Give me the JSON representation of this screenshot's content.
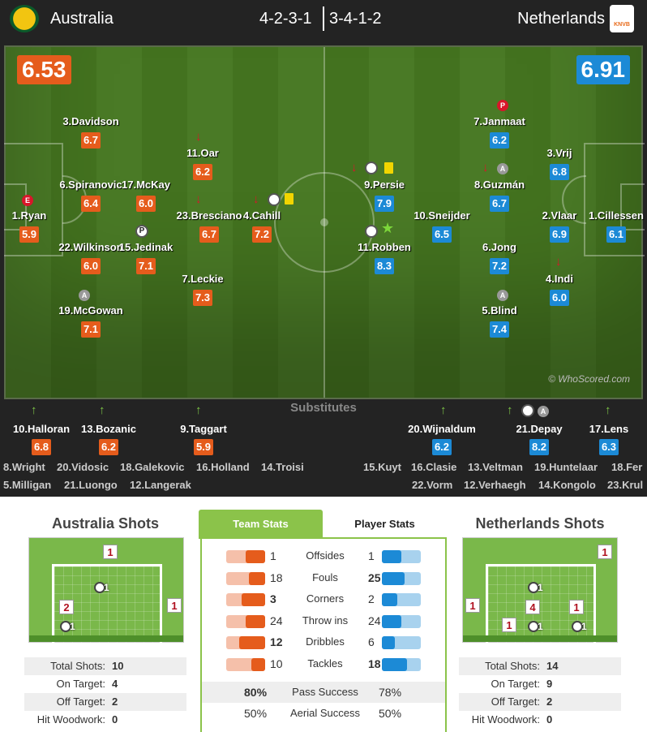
{
  "header": {
    "home_team": "Australia",
    "away_team": "Netherlands",
    "home_formation": "4-2-3-1",
    "away_formation": "3-4-1-2",
    "home_rating": "6.53",
    "away_rating": "6.91",
    "home_badge_icon": "australia-crest-icon",
    "away_badge_icon": "knvb-lion-icon",
    "knvb_text": "KNVB"
  },
  "colors": {
    "home": "#e55c1c",
    "away": "#1c8ad6",
    "pitch": "#4a7a26",
    "accent": "#8bc34a"
  },
  "pitch": {
    "watermark": "© WhoScored.com"
  },
  "home_players": [
    {
      "name": "1.Ryan",
      "rating": "5.9",
      "icons": [
        "red-card-icon"
      ]
    },
    {
      "name": "3.Davidson",
      "rating": "6.7",
      "icons": []
    },
    {
      "name": "6.Spiranovic",
      "rating": "6.4",
      "icons": []
    },
    {
      "name": "22.Wilkinson",
      "rating": "6.0",
      "icons": []
    },
    {
      "name": "19.McGowan",
      "rating": "7.1",
      "icons": [
        "assist-icon"
      ]
    },
    {
      "name": "17.McKay",
      "rating": "6.0",
      "icons": []
    },
    {
      "name": "15.Jedinak",
      "rating": "7.1",
      "icons": [
        "penalty-goal-icon"
      ]
    },
    {
      "name": "11.Oar",
      "rating": "6.2",
      "icons": [
        "sub-off-icon"
      ]
    },
    {
      "name": "23.Bresciano",
      "rating": "6.7",
      "icons": [
        "sub-off-icon"
      ]
    },
    {
      "name": "7.Leckie",
      "rating": "7.3",
      "icons": []
    },
    {
      "name": "4.Cahill",
      "rating": "7.2",
      "icons": [
        "sub-off-icon",
        "goal-icon",
        "yellow-card-icon"
      ]
    }
  ],
  "away_players": [
    {
      "name": "1.Cillessen",
      "rating": "6.1",
      "icons": []
    },
    {
      "name": "3.Vrij",
      "rating": "6.8",
      "icons": []
    },
    {
      "name": "2.Vlaar",
      "rating": "6.9",
      "icons": []
    },
    {
      "name": "4.Indi",
      "rating": "6.0",
      "icons": [
        "sub-off-icon"
      ]
    },
    {
      "name": "7.Janmaat",
      "rating": "6.2",
      "icons": [
        "penalty-conceded-icon"
      ]
    },
    {
      "name": "8.Guzmán",
      "rating": "6.7",
      "icons": [
        "sub-off-icon",
        "assist-icon"
      ]
    },
    {
      "name": "6.Jong",
      "rating": "7.2",
      "icons": []
    },
    {
      "name": "5.Blind",
      "rating": "7.4",
      "icons": [
        "assist-icon"
      ]
    },
    {
      "name": "10.Sneijder",
      "rating": "6.5",
      "icons": []
    },
    {
      "name": "9.Persie",
      "rating": "7.9",
      "icons": [
        "sub-off-icon",
        "goal-icon",
        "yellow-card-icon"
      ]
    },
    {
      "name": "11.Robben",
      "rating": "8.3",
      "icons": [
        "goal-icon",
        "man-of-the-match-icon"
      ]
    }
  ],
  "substitutes": {
    "title": "Substitutes",
    "home_used": [
      {
        "name": "10.Halloran",
        "rating": "6.8"
      },
      {
        "name": "13.Bozanic",
        "rating": "6.2"
      },
      {
        "name": "9.Taggart",
        "rating": "5.9"
      }
    ],
    "away_used": [
      {
        "name": "20.Wijnaldum",
        "rating": "6.2"
      },
      {
        "name": "21.Depay",
        "rating": "8.2"
      },
      {
        "name": "17.Lens",
        "rating": "6.3"
      }
    ],
    "home_bench": [
      "8.Wright",
      "20.Vidosic",
      "18.Galekovic",
      "16.Holland",
      "14.Troisi",
      "5.Milligan",
      "21.Luongo",
      "12.Langerak"
    ],
    "away_bench": [
      "15.Kuyt",
      "16.Clasie",
      "13.Veltman",
      "19.Huntelaar",
      "18.Fer",
      "22.Vorm",
      "12.Verhaegh",
      "14.Kongolo",
      "23.Krul"
    ]
  },
  "home_shots": {
    "title": "Australia Shots",
    "zones": {
      "top": "1",
      "left": "2",
      "right": "1",
      "goal_a": "1",
      "goal_b": "1"
    },
    "rows": [
      {
        "label": "Total Shots:",
        "value": "10"
      },
      {
        "label": "On Target:",
        "value": "4"
      },
      {
        "label": "Off Target:",
        "value": "2"
      },
      {
        "label": "Hit Woodwork:",
        "value": "0"
      }
    ]
  },
  "away_shots": {
    "title": "Netherlands Shots",
    "zones": {
      "top": "1",
      "left": "1",
      "center": "4",
      "right": "1",
      "low_left": "1",
      "goal_a": "1",
      "goal_b": "1",
      "goal_c": "1"
    },
    "rows": [
      {
        "label": "Total Shots:",
        "value": "14"
      },
      {
        "label": "On Target:",
        "value": "9"
      },
      {
        "label": "Off Target:",
        "value": "2"
      },
      {
        "label": "Hit Woodwork:",
        "value": "0"
      }
    ]
  },
  "stats": {
    "tab_team": "Team Stats",
    "tab_player": "Player Stats",
    "rows": [
      {
        "label": "Offsides",
        "home": "1",
        "away": "1",
        "home_share": 0.5,
        "away_share": 0.5,
        "bold": "none"
      },
      {
        "label": "Fouls",
        "home": "18",
        "away": "25",
        "home_share": 0.42,
        "away_share": 0.58,
        "bold": "away"
      },
      {
        "label": "Corners",
        "home": "3",
        "away": "2",
        "home_share": 0.6,
        "away_share": 0.4,
        "bold": "home"
      },
      {
        "label": "Throw ins",
        "home": "24",
        "away": "24",
        "home_share": 0.5,
        "away_share": 0.5,
        "bold": "none"
      },
      {
        "label": "Dribbles",
        "home": "12",
        "away": "6",
        "home_share": 0.67,
        "away_share": 0.33,
        "bold": "home"
      },
      {
        "label": "Tackles",
        "home": "10",
        "away": "18",
        "home_share": 0.36,
        "away_share": 0.64,
        "bold": "away"
      }
    ],
    "pass_label": "Pass Success",
    "pass_home": "80%",
    "pass_away": "78%",
    "aerial_label": "Aerial Success",
    "aerial_home": "50%",
    "aerial_away": "50%"
  }
}
